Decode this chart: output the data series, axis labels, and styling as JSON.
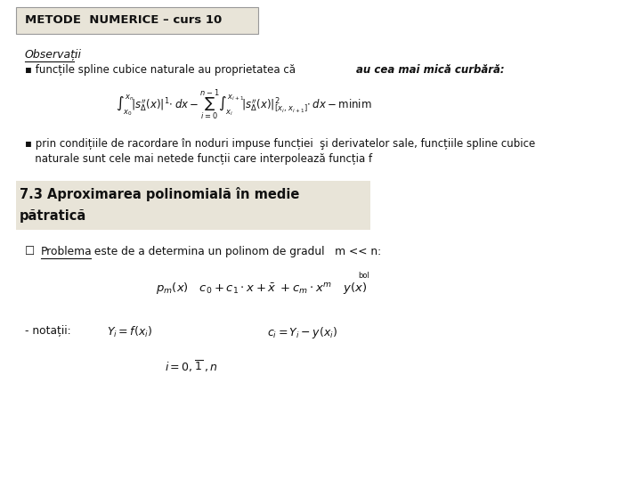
{
  "bg_color": "#ffffff",
  "header_bg": "#e8e4d8",
  "header_text": "METODE  NUMERICE – curs 10",
  "section_bg": "#e8e4d8",
  "obs_italic": "Observații",
  "bullet1_normal": "▪ funcțile spline cubice naturale au proprietatea că ",
  "bullet1_italic": "au cea mai mică curbără",
  "bullet1_end": ":",
  "formula1": "$\\int_{x_0}^{x_n}\\!\\left|s_\\Delta''(x)\\right|^{1}\\!\\cdot dx - \\sum_{i=0}^{n-1}\\int_{x_i}^{x_{i+1}}\\!\\left|s_\\Delta''(x)\\right|_{[x_i,\\,x_{i+1}]}^{2}\\!\\cdot dx - \\mathrm{minim}$",
  "bullet2_line1": "▪ prin condițiile de racordare în noduri impuse funcției  şi derivatelor sale, funcțiile spline cubice",
  "bullet2_line2": "   naturale sunt cele mai netede funcții care interpolează funcția f",
  "section_line1": "7.3 Aproximarea polinomială în medie",
  "section_line2": "pătratică",
  "problem_word": "Problema",
  "problem_rest": " este de a determina un polinom de gradul   m << n:",
  "formula2": "$p_m(x)\\quad c_0+c_1\\cdot x+\\bar{x}\\;+c_m\\cdot x^m\\quad y(x)$",
  "bol_text": "bol",
  "nota_label": "- notații:",
  "nota1": "$Y_i = f(x_i)$",
  "nota2": "$c_i = Y_i - y(x_i)$",
  "nota3": "$i = 0,\\overline{1}\\;,n$",
  "font_color": "#111111",
  "fig_w": 7.2,
  "fig_h": 5.4,
  "dpi": 100
}
